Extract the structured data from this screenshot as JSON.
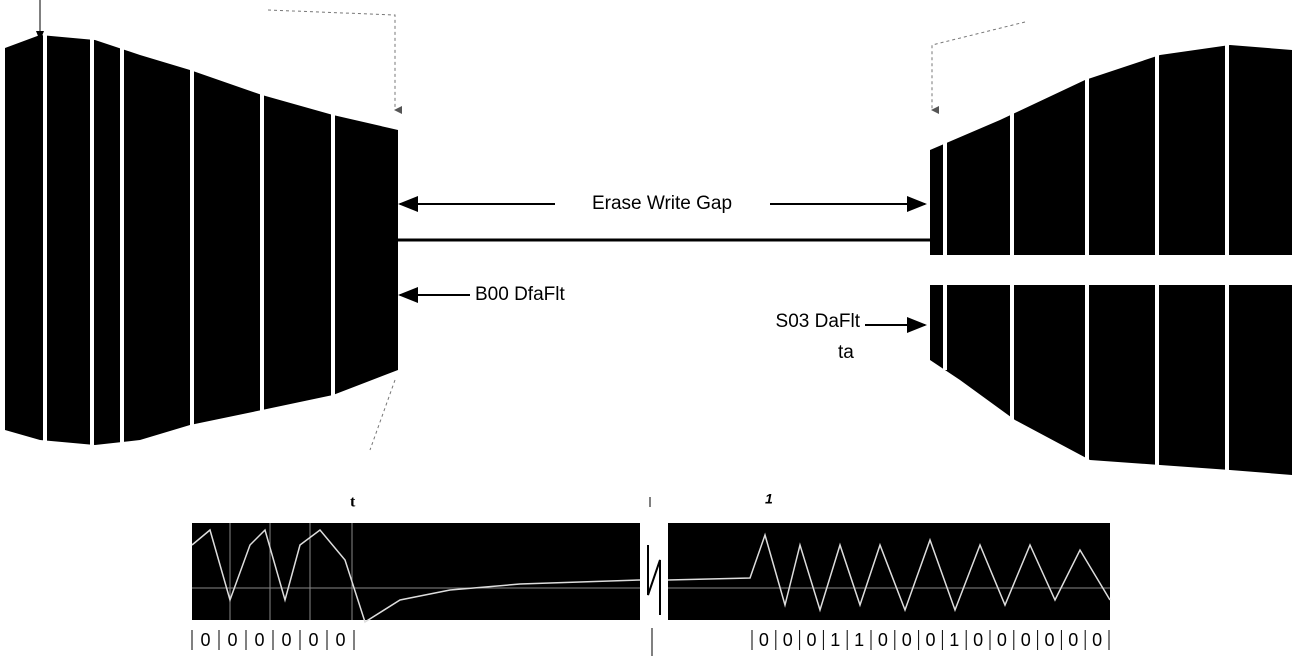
{
  "gap_label": "Erase Write Gap",
  "end_label": "B00 DfaFlt",
  "start_label": [
    "S03 DaFlt",
    "ta"
  ],
  "left_marker": "t",
  "right_marker": "1",
  "left_bits": [
    "0",
    "0",
    "0",
    "0",
    "0",
    "0"
  ],
  "right_bits": [
    "0",
    "0",
    "0",
    "1",
    "1",
    "0",
    "0",
    "0",
    "1",
    "0",
    "0",
    "0",
    "0",
    "0",
    "0"
  ]
}
